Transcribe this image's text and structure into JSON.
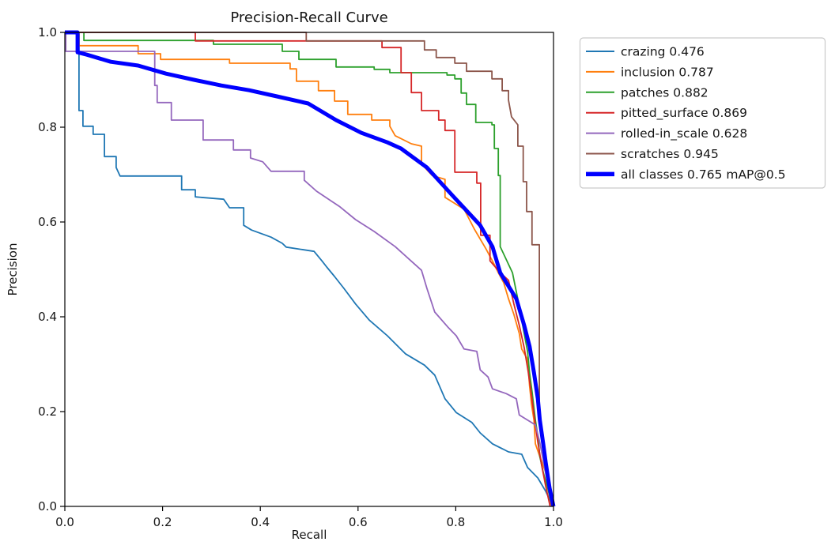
{
  "title": "Precision-Recall Curve",
  "chart_data": {
    "type": "line",
    "title": "Precision-Recall Curve",
    "xlabel": "Recall",
    "ylabel": "Precision",
    "xlim": [
      0.0,
      1.0
    ],
    "ylim": [
      0.0,
      1.0
    ],
    "xticks": [
      0.0,
      0.2,
      0.4,
      0.6,
      0.8,
      1.0
    ],
    "xtick_labels": [
      "0.0",
      "0.2",
      "0.4",
      "0.6",
      "0.8",
      "1.0"
    ],
    "yticks": [
      0.0,
      0.2,
      0.4,
      0.6,
      0.8,
      1.0
    ],
    "ytick_labels": [
      "0.0",
      "0.2",
      "0.4",
      "0.6",
      "0.8",
      "1.0"
    ],
    "grid": false,
    "curve_style": "precision-recall steps",
    "legend_position": "outside-upper-right",
    "spine_color": "#000000",
    "background_color": "#ffffff",
    "map_at_05": 0.765,
    "series": [
      {
        "name": "crazing",
        "label": "crazing 0.476",
        "ap": 0.476,
        "color": "#1f77b4",
        "linewidth": 1.8,
        "points": [
          [
            0,
            1
          ],
          [
            0.029,
            1
          ],
          [
            0.029,
            0.835
          ],
          [
            0.037,
            0.835
          ],
          [
            0.037,
            0.802
          ],
          [
            0.058,
            0.802
          ],
          [
            0.058,
            0.785
          ],
          [
            0.081,
            0.785
          ],
          [
            0.081,
            0.738
          ],
          [
            0.105,
            0.738
          ],
          [
            0.105,
            0.715
          ],
          [
            0.113,
            0.697
          ],
          [
            0.239,
            0.697
          ],
          [
            0.239,
            0.668
          ],
          [
            0.267,
            0.668
          ],
          [
            0.267,
            0.653
          ],
          [
            0.325,
            0.648
          ],
          [
            0.337,
            0.63
          ],
          [
            0.366,
            0.63
          ],
          [
            0.366,
            0.593
          ],
          [
            0.382,
            0.583
          ],
          [
            0.422,
            0.568
          ],
          [
            0.445,
            0.555
          ],
          [
            0.453,
            0.547
          ],
          [
            0.51,
            0.538
          ],
          [
            0.526,
            0.518
          ],
          [
            0.536,
            0.505
          ],
          [
            0.552,
            0.485
          ],
          [
            0.571,
            0.46
          ],
          [
            0.595,
            0.427
          ],
          [
            0.623,
            0.393
          ],
          [
            0.66,
            0.36
          ],
          [
            0.697,
            0.322
          ],
          [
            0.736,
            0.298
          ],
          [
            0.757,
            0.277
          ],
          [
            0.778,
            0.227
          ],
          [
            0.801,
            0.198
          ],
          [
            0.833,
            0.177
          ],
          [
            0.85,
            0.155
          ],
          [
            0.875,
            0.132
          ],
          [
            0.908,
            0.115
          ],
          [
            0.935,
            0.11
          ],
          [
            0.947,
            0.082
          ],
          [
            0.968,
            0.06
          ],
          [
            0.984,
            0.032
          ],
          [
            0.998,
            0.002
          ]
        ]
      },
      {
        "name": "inclusion",
        "label": "inclusion 0.787",
        "ap": 0.787,
        "color": "#ff7f0e",
        "linewidth": 1.8,
        "points": [
          [
            0,
            1
          ],
          [
            0.029,
            1
          ],
          [
            0.029,
            0.972
          ],
          [
            0.15,
            0.972
          ],
          [
            0.15,
            0.955
          ],
          [
            0.196,
            0.955
          ],
          [
            0.196,
            0.943
          ],
          [
            0.337,
            0.943
          ],
          [
            0.337,
            0.935
          ],
          [
            0.461,
            0.935
          ],
          [
            0.461,
            0.923
          ],
          [
            0.474,
            0.923
          ],
          [
            0.474,
            0.897
          ],
          [
            0.519,
            0.897
          ],
          [
            0.519,
            0.877
          ],
          [
            0.552,
            0.877
          ],
          [
            0.552,
            0.855
          ],
          [
            0.579,
            0.855
          ],
          [
            0.579,
            0.827
          ],
          [
            0.628,
            0.827
          ],
          [
            0.628,
            0.815
          ],
          [
            0.665,
            0.815
          ],
          [
            0.665,
            0.802
          ],
          [
            0.676,
            0.782
          ],
          [
            0.709,
            0.765
          ],
          [
            0.73,
            0.76
          ],
          [
            0.73,
            0.722
          ],
          [
            0.752,
            0.698
          ],
          [
            0.778,
            0.69
          ],
          [
            0.778,
            0.652
          ],
          [
            0.817,
            0.627
          ],
          [
            0.838,
            0.585
          ],
          [
            0.862,
            0.543
          ],
          [
            0.879,
            0.51
          ],
          [
            0.887,
            0.493
          ],
          [
            0.898,
            0.472
          ],
          [
            0.908,
            0.438
          ],
          [
            0.919,
            0.405
          ],
          [
            0.93,
            0.365
          ],
          [
            0.935,
            0.332
          ],
          [
            0.947,
            0.31
          ],
          [
            0.951,
            0.255
          ],
          [
            0.955,
            0.215
          ],
          [
            0.96,
            0.182
          ],
          [
            0.963,
            0.132
          ],
          [
            0.972,
            0.105
          ],
          [
            0.984,
            0.072
          ],
          [
            0.995,
            0.005
          ],
          [
            0.998,
            0
          ]
        ]
      },
      {
        "name": "patches",
        "label": "patches 0.882",
        "ap": 0.882,
        "color": "#2ca02c",
        "linewidth": 1.8,
        "points": [
          [
            0,
            1
          ],
          [
            0.039,
            1
          ],
          [
            0.039,
            0.983
          ],
          [
            0.304,
            0.983
          ],
          [
            0.304,
            0.975
          ],
          [
            0.445,
            0.975
          ],
          [
            0.445,
            0.96
          ],
          [
            0.479,
            0.96
          ],
          [
            0.479,
            0.943
          ],
          [
            0.555,
            0.943
          ],
          [
            0.555,
            0.927
          ],
          [
            0.633,
            0.927
          ],
          [
            0.633,
            0.922
          ],
          [
            0.665,
            0.922
          ],
          [
            0.665,
            0.915
          ],
          [
            0.782,
            0.915
          ],
          [
            0.782,
            0.91
          ],
          [
            0.798,
            0.91
          ],
          [
            0.798,
            0.902
          ],
          [
            0.811,
            0.902
          ],
          [
            0.811,
            0.872
          ],
          [
            0.822,
            0.872
          ],
          [
            0.822,
            0.848
          ],
          [
            0.841,
            0.848
          ],
          [
            0.841,
            0.81
          ],
          [
            0.874,
            0.81
          ],
          [
            0.874,
            0.805
          ],
          [
            0.879,
            0.805
          ],
          [
            0.879,
            0.755
          ],
          [
            0.887,
            0.755
          ],
          [
            0.887,
            0.698
          ],
          [
            0.891,
            0.698
          ],
          [
            0.891,
            0.548
          ],
          [
            0.916,
            0.493
          ],
          [
            0.93,
            0.422
          ],
          [
            0.94,
            0.365
          ],
          [
            0.947,
            0.327
          ],
          [
            0.951,
            0.282
          ],
          [
            0.956,
            0.243
          ],
          [
            0.963,
            0.182
          ],
          [
            0.968,
            0.148
          ],
          [
            0.972,
            0.105
          ],
          [
            0.979,
            0.072
          ],
          [
            0.989,
            0.035
          ],
          [
            0.997,
            0
          ]
        ]
      },
      {
        "name": "pitted_surface",
        "label": "pitted_surface 0.869",
        "ap": 0.869,
        "color": "#d62728",
        "linewidth": 1.8,
        "points": [
          [
            0,
            1
          ],
          [
            0.267,
            1
          ],
          [
            0.267,
            0.982
          ],
          [
            0.649,
            0.982
          ],
          [
            0.649,
            0.968
          ],
          [
            0.688,
            0.968
          ],
          [
            0.688,
            0.915
          ],
          [
            0.709,
            0.915
          ],
          [
            0.709,
            0.873
          ],
          [
            0.73,
            0.873
          ],
          [
            0.73,
            0.835
          ],
          [
            0.765,
            0.835
          ],
          [
            0.765,
            0.815
          ],
          [
            0.778,
            0.815
          ],
          [
            0.778,
            0.793
          ],
          [
            0.798,
            0.793
          ],
          [
            0.798,
            0.705
          ],
          [
            0.843,
            0.705
          ],
          [
            0.843,
            0.682
          ],
          [
            0.851,
            0.682
          ],
          [
            0.851,
            0.572
          ],
          [
            0.87,
            0.572
          ],
          [
            0.87,
            0.518
          ],
          [
            0.891,
            0.493
          ],
          [
            0.908,
            0.477
          ],
          [
            0.919,
            0.427
          ],
          [
            0.93,
            0.382
          ],
          [
            0.94,
            0.335
          ],
          [
            0.948,
            0.285
          ],
          [
            0.955,
            0.235
          ],
          [
            0.961,
            0.185
          ],
          [
            0.968,
            0.135
          ],
          [
            0.976,
            0.085
          ],
          [
            0.984,
            0.043
          ],
          [
            0.993,
            0
          ]
        ]
      },
      {
        "name": "rolled-in_scale",
        "label": "rolled-in_scale 0.628",
        "ap": 0.628,
        "color": "#9467bd",
        "linewidth": 1.8,
        "points": [
          [
            0,
            1
          ],
          [
            0.002,
            1
          ],
          [
            0.002,
            0.96
          ],
          [
            0.184,
            0.96
          ],
          [
            0.184,
            0.888
          ],
          [
            0.189,
            0.888
          ],
          [
            0.189,
            0.852
          ],
          [
            0.218,
            0.852
          ],
          [
            0.218,
            0.815
          ],
          [
            0.283,
            0.815
          ],
          [
            0.283,
            0.773
          ],
          [
            0.345,
            0.773
          ],
          [
            0.345,
            0.752
          ],
          [
            0.38,
            0.752
          ],
          [
            0.38,
            0.735
          ],
          [
            0.405,
            0.727
          ],
          [
            0.422,
            0.707
          ],
          [
            0.49,
            0.707
          ],
          [
            0.49,
            0.688
          ],
          [
            0.515,
            0.665
          ],
          [
            0.563,
            0.632
          ],
          [
            0.595,
            0.605
          ],
          [
            0.633,
            0.58
          ],
          [
            0.676,
            0.548
          ],
          [
            0.704,
            0.522
          ],
          [
            0.73,
            0.498
          ],
          [
            0.741,
            0.46
          ],
          [
            0.757,
            0.41
          ],
          [
            0.785,
            0.377
          ],
          [
            0.801,
            0.36
          ],
          [
            0.817,
            0.332
          ],
          [
            0.843,
            0.327
          ],
          [
            0.85,
            0.288
          ],
          [
            0.866,
            0.273
          ],
          [
            0.875,
            0.248
          ],
          [
            0.903,
            0.238
          ],
          [
            0.924,
            0.227
          ],
          [
            0.93,
            0.193
          ],
          [
            0.947,
            0.182
          ],
          [
            0.963,
            0.172
          ],
          [
            0.972,
            0.135
          ],
          [
            0.981,
            0.085
          ],
          [
            0.989,
            0.043
          ],
          [
            0.997,
            0
          ]
        ]
      },
      {
        "name": "scratches",
        "label": "scratches 0.945",
        "ap": 0.945,
        "color": "#8c564b",
        "linewidth": 1.8,
        "points": [
          [
            0,
            1
          ],
          [
            0.494,
            1
          ],
          [
            0.494,
            0.982
          ],
          [
            0.736,
            0.982
          ],
          [
            0.736,
            0.963
          ],
          [
            0.76,
            0.963
          ],
          [
            0.76,
            0.947
          ],
          [
            0.798,
            0.947
          ],
          [
            0.798,
            0.935
          ],
          [
            0.822,
            0.935
          ],
          [
            0.822,
            0.918
          ],
          [
            0.874,
            0.918
          ],
          [
            0.874,
            0.902
          ],
          [
            0.895,
            0.902
          ],
          [
            0.895,
            0.877
          ],
          [
            0.908,
            0.877
          ],
          [
            0.908,
            0.857
          ],
          [
            0.914,
            0.822
          ],
          [
            0.927,
            0.805
          ],
          [
            0.927,
            0.76
          ],
          [
            0.938,
            0.76
          ],
          [
            0.938,
            0.685
          ],
          [
            0.945,
            0.685
          ],
          [
            0.945,
            0.622
          ],
          [
            0.956,
            0.622
          ],
          [
            0.956,
            0.552
          ],
          [
            0.971,
            0.552
          ],
          [
            0.971,
            0.215
          ],
          [
            0.972,
            0.193
          ],
          [
            0.979,
            0.148
          ],
          [
            0.984,
            0.105
          ],
          [
            0.989,
            0.068
          ],
          [
            0.995,
            0.005
          ],
          [
            0.997,
            0
          ]
        ]
      },
      {
        "name": "all_classes",
        "label": "all classes 0.765 mAP@0.5",
        "ap": 0.765,
        "color": "#0000ff",
        "linewidth": 5,
        "points": [
          [
            0,
            1
          ],
          [
            0.026,
            1
          ],
          [
            0.026,
            0.958
          ],
          [
            0.045,
            0.953
          ],
          [
            0.094,
            0.938
          ],
          [
            0.15,
            0.93
          ],
          [
            0.207,
            0.913
          ],
          [
            0.264,
            0.9
          ],
          [
            0.32,
            0.888
          ],
          [
            0.377,
            0.878
          ],
          [
            0.434,
            0.865
          ],
          [
            0.498,
            0.85
          ],
          [
            0.555,
            0.815
          ],
          [
            0.607,
            0.788
          ],
          [
            0.66,
            0.768
          ],
          [
            0.688,
            0.755
          ],
          [
            0.741,
            0.715
          ],
          [
            0.794,
            0.655
          ],
          [
            0.85,
            0.593
          ],
          [
            0.875,
            0.548
          ],
          [
            0.891,
            0.493
          ],
          [
            0.924,
            0.438
          ],
          [
            0.94,
            0.382
          ],
          [
            0.951,
            0.338
          ],
          [
            0.96,
            0.282
          ],
          [
            0.968,
            0.227
          ],
          [
            0.972,
            0.182
          ],
          [
            0.979,
            0.132
          ],
          [
            0.984,
            0.093
          ],
          [
            0.992,
            0.038
          ],
          [
            1,
            0
          ]
        ]
      }
    ]
  }
}
